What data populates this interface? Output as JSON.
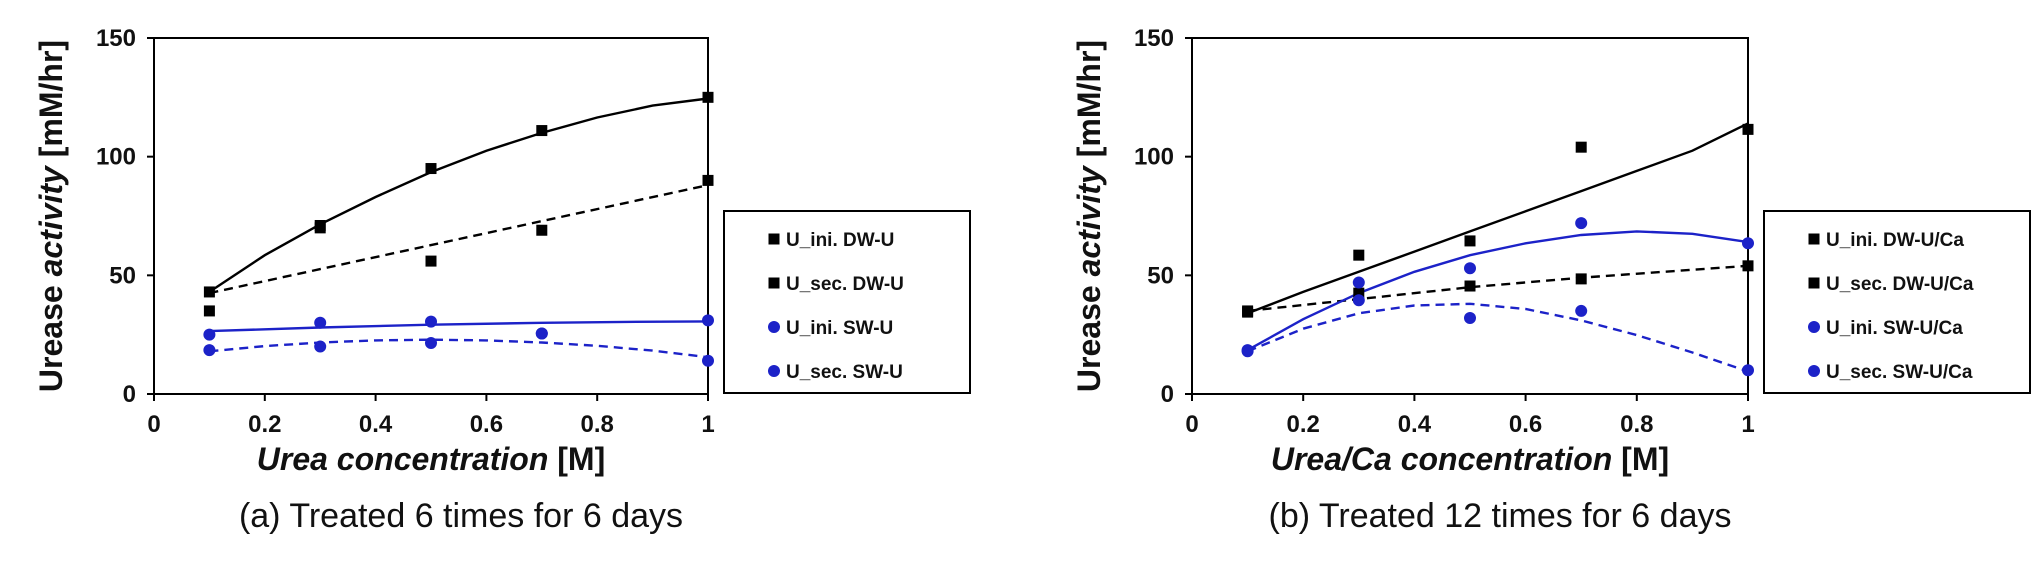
{
  "chart_data": [
    {
      "type": "scatter",
      "caption": "(a) Treated 6 times for 6 days",
      "xlabel": {
        "italic": "Urea concentration",
        "unit": " [M]"
      },
      "ylabel": {
        "plain": "Urease ",
        "italic": "activity",
        "unit": " [mM/hr]"
      },
      "xlim": [
        0,
        1
      ],
      "ylim": [
        0,
        150
      ],
      "x_ticks": [
        "0",
        "0.2",
        "0.4",
        "0.6",
        "0.8",
        "1"
      ],
      "y_ticks": [
        "0",
        "50",
        "100",
        "150"
      ],
      "legend_position": "right",
      "series": [
        {
          "name": "U_ini. DW-U",
          "color": "#000000",
          "marker": "square",
          "line": "solid",
          "points": [
            [
              0.1,
              43
            ],
            [
              0.3,
              71
            ],
            [
              0.5,
              95
            ],
            [
              0.7,
              111
            ],
            [
              1.0,
              125
            ]
          ],
          "trend": [
            [
              0.1,
              43
            ],
            [
              0.2,
              58.5
            ],
            [
              0.3,
              71.5
            ],
            [
              0.4,
              83
            ],
            [
              0.5,
              93.5
            ],
            [
              0.6,
              102.5
            ],
            [
              0.7,
              110
            ],
            [
              0.8,
              116.5
            ],
            [
              0.9,
              121.5
            ],
            [
              1.0,
              124.5
            ]
          ]
        },
        {
          "name": "U_sec. DW-U",
          "color": "#000000",
          "marker": "square",
          "line": "dashed",
          "points": [
            [
              0.1,
              35
            ],
            [
              0.3,
              70
            ],
            [
              0.5,
              56
            ],
            [
              0.7,
              69
            ],
            [
              1.0,
              90
            ]
          ],
          "trend": [
            [
              0.1,
              42.5
            ],
            [
              1.0,
              88
            ]
          ]
        },
        {
          "name": "U_ini. SW-U",
          "color": "#1c22c8",
          "marker": "circle",
          "line": "solid",
          "points": [
            [
              0.1,
              25
            ],
            [
              0.3,
              30
            ],
            [
              0.5,
              30.5
            ],
            [
              0.7,
              25.5
            ],
            [
              1.0,
              31
            ]
          ],
          "trend": [
            [
              0.1,
              26.5
            ],
            [
              0.3,
              28
            ],
            [
              0.5,
              29.2
            ],
            [
              0.7,
              30
            ],
            [
              0.85,
              30.4
            ],
            [
              1.0,
              30.6
            ]
          ]
        },
        {
          "name": "U_sec. SW-U",
          "color": "#1c22c8",
          "marker": "circle",
          "line": "dashed",
          "points": [
            [
              0.1,
              18.5
            ],
            [
              0.3,
              20
            ],
            [
              0.5,
              21.5
            ],
            [
              0.7,
              25.5
            ],
            [
              1.0,
              14
            ]
          ],
          "trend": [
            [
              0.1,
              18
            ],
            [
              0.2,
              20.2
            ],
            [
              0.3,
              21.7
            ],
            [
              0.4,
              22.6
            ],
            [
              0.5,
              22.9
            ],
            [
              0.6,
              22.6
            ],
            [
              0.7,
              21.7
            ],
            [
              0.8,
              20.3
            ],
            [
              0.9,
              18.3
            ],
            [
              1.0,
              15.5
            ]
          ]
        }
      ]
    },
    {
      "type": "scatter",
      "caption": "(b) Treated 12 times for 6 days",
      "xlabel": {
        "italic": "Urea/Ca concentration",
        "unit": " [M]"
      },
      "ylabel": {
        "plain": "Urease ",
        "italic": "activity",
        "unit": " [mM/hr]"
      },
      "xlim": [
        0,
        1
      ],
      "ylim": [
        0,
        150
      ],
      "x_ticks": [
        "0",
        "0.2",
        "0.4",
        "0.6",
        "0.8",
        "1"
      ],
      "y_ticks": [
        "0",
        "50",
        "100",
        "150"
      ],
      "legend_position": "right",
      "series": [
        {
          "name": "U_ini. DW-U/Ca",
          "color": "#000000",
          "marker": "square",
          "line": "solid",
          "points": [
            [
              0.1,
              35
            ],
            [
              0.3,
              58.5
            ],
            [
              0.5,
              64.5
            ],
            [
              0.7,
              104
            ],
            [
              1.0,
              111.5
            ]
          ],
          "trend": [
            [
              0.1,
              34
            ],
            [
              0.2,
              43
            ],
            [
              0.3,
              51.5
            ],
            [
              0.4,
              60
            ],
            [
              0.5,
              68.5
            ],
            [
              0.6,
              77
            ],
            [
              0.7,
              85.5
            ],
            [
              0.8,
              94
            ],
            [
              0.9,
              102.5
            ],
            [
              1.0,
              114
            ]
          ]
        },
        {
          "name": "U_sec. DW-U/Ca",
          "color": "#000000",
          "marker": "square",
          "line": "dashed",
          "points": [
            [
              0.1,
              34.5
            ],
            [
              0.3,
              42.5
            ],
            [
              0.5,
              45.5
            ],
            [
              0.7,
              48.5
            ],
            [
              1.0,
              54
            ]
          ],
          "trend": [
            [
              0.1,
              35
            ],
            [
              0.3,
              40
            ],
            [
              0.5,
              45
            ],
            [
              0.7,
              49
            ],
            [
              1.0,
              54
            ]
          ]
        },
        {
          "name": "U_ini. SW-U/Ca",
          "color": "#1c22c8",
          "marker": "circle",
          "line": "solid",
          "points": [
            [
              0.1,
              18.5
            ],
            [
              0.3,
              47
            ],
            [
              0.5,
              53
            ],
            [
              0.7,
              72
            ],
            [
              1.0,
              63.5
            ]
          ],
          "trend": [
            [
              0.1,
              18.5
            ],
            [
              0.2,
              31.5
            ],
            [
              0.3,
              42.5
            ],
            [
              0.4,
              51.5
            ],
            [
              0.5,
              58.5
            ],
            [
              0.6,
              63.5
            ],
            [
              0.7,
              67
            ],
            [
              0.8,
              68.5
            ],
            [
              0.9,
              67.5
            ],
            [
              1.0,
              64
            ]
          ]
        },
        {
          "name": "U_sec. SW-U/Ca",
          "color": "#1c22c8",
          "marker": "circle",
          "line": "dashed",
          "points": [
            [
              0.1,
              18
            ],
            [
              0.3,
              39.5
            ],
            [
              0.5,
              32
            ],
            [
              0.7,
              35
            ],
            [
              1.0,
              10
            ]
          ],
          "trend": [
            [
              0.1,
              18
            ],
            [
              0.2,
              27.5
            ],
            [
              0.3,
              34
            ],
            [
              0.4,
              37.3
            ],
            [
              0.5,
              38
            ],
            [
              0.6,
              35.8
            ],
            [
              0.7,
              31
            ],
            [
              0.8,
              24.8
            ],
            [
              0.9,
              17.5
            ],
            [
              1.0,
              9.5
            ]
          ]
        }
      ]
    }
  ]
}
